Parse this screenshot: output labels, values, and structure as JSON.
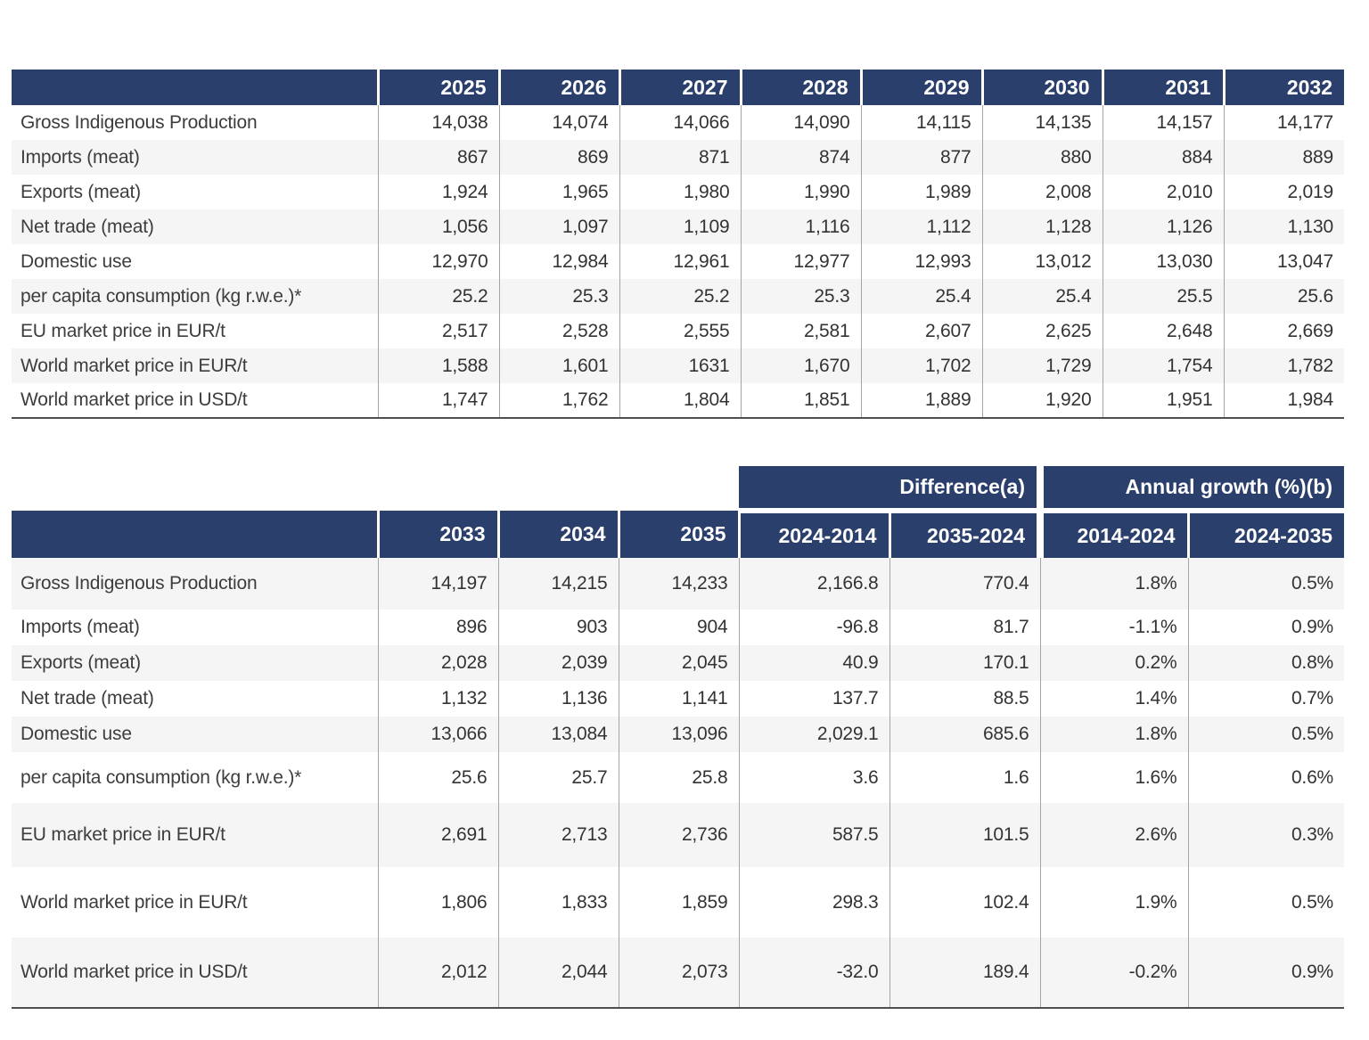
{
  "colors": {
    "header_navy": "#2a3f6c",
    "stripe_gray": "#f5f5f5",
    "divider_gray": "#a5a5a5",
    "table_bottom_border": "#4f4f4f",
    "header_text": "#ffffff",
    "body_text": "#3a3a3a"
  },
  "table1": {
    "col_headers": [
      "",
      "2025",
      "2026",
      "2027",
      "2028",
      "2029",
      "2030",
      "2031",
      "2032"
    ],
    "rows": [
      {
        "label": "Gross Indigenous Production",
        "values": [
          "14,038",
          "14,074",
          "14,066",
          "14,090",
          "14,115",
          "14,135",
          "14,157",
          "14,177"
        ]
      },
      {
        "label": "Imports (meat)",
        "values": [
          "867",
          "869",
          "871",
          "874",
          "877",
          "880",
          "884",
          "889"
        ]
      },
      {
        "label": "Exports (meat)",
        "values": [
          "1,924",
          "1,965",
          "1,980",
          "1,990",
          "1,989",
          "2,008",
          "2,010",
          "2,019"
        ]
      },
      {
        "label": "Net trade (meat)",
        "values": [
          "1,056",
          "1,097",
          "1,109",
          "1,116",
          "1,112",
          "1,128",
          "1,126",
          "1,130"
        ]
      },
      {
        "label": "Domestic use",
        "values": [
          "12,970",
          "12,984",
          "12,961",
          "12,977",
          "12,993",
          "13,012",
          "13,030",
          "13,047"
        ]
      },
      {
        "label": "per capita consumption (kg r.w.e.)*",
        "values": [
          "25.2",
          "25.3",
          "25.2",
          "25.3",
          "25.4",
          "25.4",
          "25.5",
          "25.6"
        ]
      },
      {
        "label": "EU market price in EUR/t",
        "values": [
          "2,517",
          "2,528",
          "2,555",
          "2,581",
          "2,607",
          "2,625",
          "2,648",
          "2,669"
        ]
      },
      {
        "label": "World market price in EUR/t",
        "values": [
          "1,588",
          "1,601",
          "1631",
          "1,670",
          "1,702",
          "1,729",
          "1,754",
          "1,782"
        ]
      },
      {
        "label": "World market price in USD/t",
        "values": [
          "1,747",
          "1,762",
          "1,804",
          "1,851",
          "1,889",
          "1,920",
          "1,951",
          "1,984"
        ]
      }
    ]
  },
  "table2": {
    "group_headers": [
      {
        "label": "Difference(a)",
        "span": 2
      },
      {
        "label": "Annual growth (%)(b)",
        "span": 2
      }
    ],
    "col_headers": [
      "",
      "2033",
      "2034",
      "2035",
      "2024-2014",
      "2035-2024",
      "2014-2024",
      "2024-2035"
    ],
    "rows": [
      {
        "label": "Gross Indigenous Production",
        "values": [
          "14,197",
          "14,215",
          "14,233",
          "2,166.8",
          "770.4",
          "1.8%",
          "0.5%"
        ]
      },
      {
        "label": "Imports (meat)",
        "values": [
          "896",
          "903",
          "904",
          "-96.8",
          "81.7",
          "-1.1%",
          "0.9%"
        ]
      },
      {
        "label": "Exports (meat)",
        "values": [
          "2,028",
          "2,039",
          "2,045",
          "40.9",
          "170.1",
          "0.2%",
          "0.8%"
        ]
      },
      {
        "label": "Net trade (meat)",
        "values": [
          "1,132",
          "1,136",
          "1,141",
          "137.7",
          "88.5",
          "1.4%",
          "0.7%"
        ]
      },
      {
        "label": "Domestic use",
        "values": [
          "13,066",
          "13,084",
          "13,096",
          "2,029.1",
          "685.6",
          "1.8%",
          "0.5%"
        ]
      },
      {
        "label": "per capita consumption (kg r.w.e.)*",
        "values": [
          "25.6",
          "25.7",
          "25.8",
          "3.6",
          "1.6",
          "1.6%",
          "0.6%"
        ]
      },
      {
        "label": "EU market price in EUR/t",
        "values": [
          "2,691",
          "2,713",
          "2,736",
          "587.5",
          "101.5",
          "2.6%",
          "0.3%"
        ]
      },
      {
        "label": "World market price in EUR/t",
        "values": [
          "1,806",
          "1,833",
          "1,859",
          "298.3",
          "102.4",
          "1.9%",
          "0.5%"
        ]
      },
      {
        "label": "World market price in USD/t",
        "values": [
          "2,012",
          "2,044",
          "2,073",
          "-32.0",
          "189.4",
          "-0.2%",
          "0.9%"
        ]
      }
    ]
  }
}
